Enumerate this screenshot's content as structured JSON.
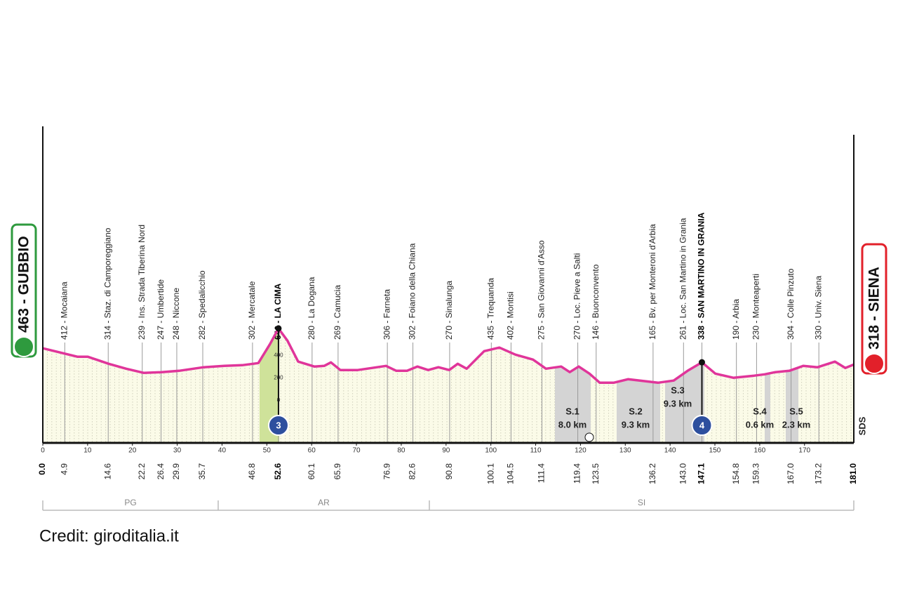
{
  "chart_data": {
    "type": "line",
    "color": "#e0359a",
    "x": [
      0,
      4.5,
      7.7,
      10,
      12.4,
      14.7,
      18.6,
      22.5,
      26.5,
      30.4,
      35.9,
      40.5,
      44.5,
      48.1,
      50.7,
      52.6,
      54.6,
      57,
      60.6,
      62.8,
      64.3,
      66.4,
      70.3,
      73.4,
      76.6,
      78.9,
      81.3,
      83.6,
      86,
      88.3,
      90.7,
      92.6,
      94.6,
      98.5,
      101.9,
      105.5,
      109.4,
      112.3,
      115.7,
      117.6,
      119.6,
      122,
      124.3,
      127.4,
      130.6,
      137.3,
      140.8,
      143.9,
      147.1,
      150.1,
      154.1,
      158.8,
      161.1,
      163.5,
      166.6,
      169.7,
      172.9,
      176.8,
      179.1,
      181
    ],
    "values": [
      463,
      419,
      388,
      388,
      356,
      325,
      281,
      244,
      250,
      262,
      294,
      306,
      312,
      331,
      500,
      640,
      531,
      344,
      300,
      306,
      337,
      269,
      269,
      287,
      306,
      262,
      262,
      300,
      269,
      294,
      269,
      325,
      281,
      437,
      469,
      406,
      362,
      281,
      300,
      250,
      300,
      237,
      156,
      156,
      187,
      156,
      175,
      262,
      338,
      237,
      200,
      219,
      231,
      250,
      262,
      306,
      294,
      344,
      287,
      318
    ],
    "xlim": [
      0,
      181
    ],
    "xticks": [
      0,
      10,
      20,
      30,
      40,
      50,
      60,
      70,
      80,
      90,
      100,
      110,
      120,
      130,
      140,
      150,
      160,
      170
    ],
    "ylim": [
      -380,
      2440
    ],
    "yticks": [
      0,
      200,
      400
    ],
    "start": {
      "label": "463 - GUBBIO",
      "km": {
        "value": 0,
        "label": "0.0"
      }
    },
    "finish": {
      "label": "318 - SIENA",
      "km": {
        "value": 181,
        "label": "181.0"
      }
    },
    "waypoints": [
      {
        "km": 4.9,
        "label": "412 - Mocaiana"
      },
      {
        "km": 14.6,
        "label": "314 - Staz. di Camporeggiano"
      },
      {
        "km": 22.2,
        "label": "239 - Ins. Strada Tiberina Nord"
      },
      {
        "km": 26.4,
        "label": "247 - Umbertide"
      },
      {
        "km": 29.9,
        "label": "248 - Niccone"
      },
      {
        "km": 35.7,
        "label": "282 - Spedalicchio"
      },
      {
        "km": 46.8,
        "label": "302 - Mercatale"
      },
      {
        "km": 52.6,
        "label": "640 - LA CIMA"
      },
      {
        "km": 60.1,
        "label": "280 - La Dogana"
      },
      {
        "km": 65.9,
        "label": "269 - Camucia"
      },
      {
        "km": 76.9,
        "label": "306 - Farneta"
      },
      {
        "km": 82.6,
        "label": "302 - Foiano della Chiana"
      },
      {
        "km": 90.8,
        "label": "270 - Sinalunga"
      },
      {
        "km": 100.1,
        "label": "435 - Trequanda"
      },
      {
        "km": 104.5,
        "label": "402 - Montisi"
      },
      {
        "km": 111.4,
        "label": "275 - San Giovanni d'Asso"
      },
      {
        "km": 119.4,
        "label": "270 - Loc. Pieve a Salti"
      },
      {
        "km": 123.5,
        "label": "146 - Buonconvento"
      },
      {
        "km": 136.2,
        "label": "165 - Bv. per Monteroni d'Arbia"
      },
      {
        "km": {
          "value": 143,
          "label": "143.0"
        },
        "label": "261 - Loc. San Martino in Grania"
      },
      {
        "km": 147.1,
        "label": "338 - SAN MARTINO IN GRANIA"
      },
      {
        "km": 154.8,
        "label": "190 - Arbia"
      },
      {
        "km": 159.3,
        "label": "230 - Monteaperti"
      },
      {
        "km": {
          "value": 167,
          "label": "167.0"
        },
        "label": "304 - Colle Pinzuto"
      },
      {
        "km": 173.2,
        "label": "330 - Univ. Siena"
      }
    ],
    "climbs": [
      {
        "km": 52.6,
        "category": 3
      },
      {
        "km": 147.1,
        "category": 4
      }
    ],
    "sectors": [
      {
        "name": "S.1",
        "length": "8.0 km"
      },
      {
        "name": "S.2",
        "length": "9.3 km"
      },
      {
        "name": "S.3",
        "length": "9.3 km"
      },
      {
        "name": "S.4",
        "length": "0.6 km"
      },
      {
        "name": "S.5",
        "length": "2.3 km"
      }
    ],
    "regions": [
      "PG",
      "AR",
      "SI"
    ],
    "sign": "SDS",
    "credit": "Credit: giroditalia.it"
  }
}
